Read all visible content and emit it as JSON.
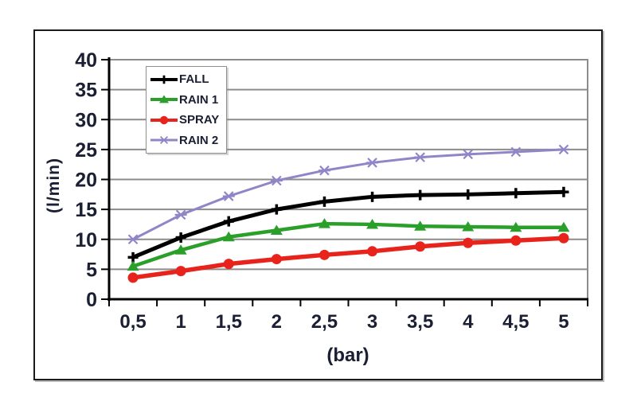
{
  "chart_data": {
    "type": "line",
    "title": "",
    "xlabel": "(bar)",
    "ylabel": "(l/min)",
    "x": [
      0.5,
      1,
      1.5,
      2,
      2.5,
      3,
      3.5,
      4,
      4.5,
      5
    ],
    "x_tick_labels": [
      "0,5",
      "1",
      "1,5",
      "2",
      "2,5",
      "3",
      "3,5",
      "4",
      "4,5",
      "5"
    ],
    "y_ticks": [
      0,
      5,
      10,
      15,
      20,
      25,
      30,
      35,
      40
    ],
    "y_tick_labels": [
      "0",
      "5",
      "10",
      "15",
      "20",
      "25",
      "30",
      "35",
      "40"
    ],
    "ylim": [
      0,
      40
    ],
    "grid": "horizontal",
    "legend_position": "top-left-inside",
    "series": [
      {
        "name": "FALL",
        "color": "#000000",
        "marker": "plus",
        "values": [
          7.0,
          10.3,
          13.0,
          15.0,
          16.3,
          17.1,
          17.4,
          17.5,
          17.7,
          17.9
        ]
      },
      {
        "name": "RAIN 1",
        "color": "#2aa02a",
        "marker": "triangle",
        "values": [
          5.5,
          8.2,
          10.4,
          11.5,
          12.6,
          12.5,
          12.2,
          12.1,
          12.0,
          12.0
        ]
      },
      {
        "name": "SPRAY",
        "color": "#e8231c",
        "marker": "circle",
        "values": [
          3.6,
          4.7,
          5.9,
          6.7,
          7.4,
          8.0,
          8.8,
          9.4,
          9.8,
          10.2
        ]
      },
      {
        "name": "RAIN 2",
        "color": "#9185c8",
        "marker": "x-star",
        "values": [
          10.0,
          14.1,
          17.2,
          19.8,
          21.5,
          22.8,
          23.7,
          24.2,
          24.6,
          25.0
        ]
      }
    ]
  },
  "colors": {
    "gridline": "#8c8c8c",
    "axis": "#000000",
    "tick_label": "#1b1f33",
    "frame": "#1a1a1a",
    "background": "#ffffff"
  }
}
